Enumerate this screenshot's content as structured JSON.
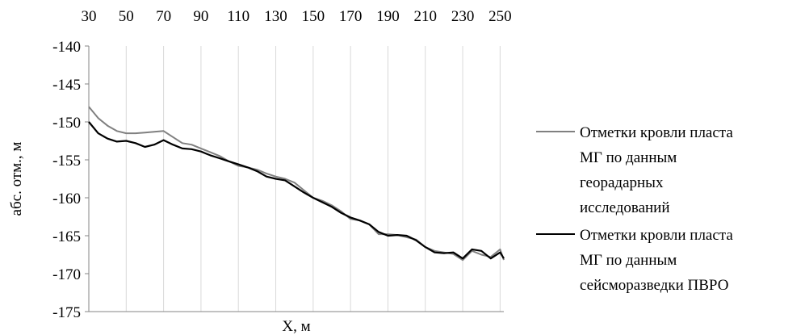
{
  "chart_data": {
    "type": "line",
    "title": "",
    "xlabel": "X, м",
    "ylabel": "абс. отм., м",
    "xlim": [
      30,
      252
    ],
    "ylim": [
      -175,
      -140
    ],
    "x_ticks": [
      30,
      50,
      70,
      90,
      110,
      130,
      150,
      170,
      190,
      210,
      230,
      250
    ],
    "x_tick_labels": [
      "30",
      "50",
      "70",
      "90",
      "110",
      "130",
      "150",
      "170",
      "190",
      "210",
      "230",
      "250"
    ],
    "y_ticks": [
      -140,
      -145,
      -150,
      -155,
      -160,
      -165,
      -170,
      -175
    ],
    "y_tick_labels": [
      "-140",
      "-145",
      "-150",
      "-155",
      "-160",
      "-165",
      "-170",
      "-175"
    ],
    "x_axis_position": "top",
    "grid": "vertical",
    "legend_position": "right",
    "series": [
      {
        "name": "Отметки кровли пласта МГ по данным георадарных исследований",
        "color": "#808080",
        "x": [
          30,
          35,
          40,
          45,
          50,
          55,
          60,
          65,
          70,
          75,
          80,
          85,
          90,
          95,
          100,
          105,
          110,
          115,
          120,
          125,
          130,
          135,
          140,
          145,
          150,
          155,
          160,
          165,
          170,
          175,
          180,
          185,
          190,
          195,
          200,
          205,
          210,
          215,
          220,
          225,
          230,
          235,
          240,
          245,
          250,
          252
        ],
        "values": [
          -148.0,
          -149.5,
          -150.5,
          -151.2,
          -151.5,
          -151.5,
          -151.4,
          -151.3,
          -151.2,
          -152.0,
          -152.8,
          -153.0,
          -153.5,
          -154.0,
          -154.5,
          -155.2,
          -155.8,
          -156.0,
          -156.3,
          -156.8,
          -157.2,
          -157.5,
          -158.0,
          -159.0,
          -160.0,
          -160.4,
          -161.0,
          -161.8,
          -162.8,
          -163.0,
          -163.5,
          -164.8,
          -164.8,
          -164.9,
          -165.2,
          -165.5,
          -166.5,
          -167.0,
          -167.2,
          -167.4,
          -168.2,
          -167.0,
          -167.5,
          -167.8,
          -166.8,
          -168.2
        ]
      },
      {
        "name": "Отметки кровли пласта МГ по данным сейсморазведки ПВРО",
        "color": "#000000",
        "x": [
          30,
          35,
          40,
          45,
          50,
          55,
          60,
          65,
          70,
          75,
          80,
          85,
          90,
          95,
          100,
          105,
          110,
          115,
          120,
          125,
          130,
          135,
          140,
          145,
          150,
          155,
          160,
          165,
          170,
          175,
          180,
          185,
          190,
          195,
          200,
          205,
          210,
          215,
          220,
          225,
          230,
          235,
          240,
          245,
          250,
          252
        ],
        "values": [
          -150.0,
          -151.5,
          -152.2,
          -152.6,
          -152.5,
          -152.8,
          -153.3,
          -153.0,
          -152.4,
          -153.0,
          -153.5,
          -153.6,
          -153.9,
          -154.4,
          -154.8,
          -155.2,
          -155.6,
          -156.0,
          -156.5,
          -157.2,
          -157.5,
          -157.7,
          -158.5,
          -159.3,
          -160.0,
          -160.6,
          -161.2,
          -162.0,
          -162.6,
          -163.0,
          -163.5,
          -164.5,
          -165.0,
          -164.9,
          -165.0,
          -165.6,
          -166.5,
          -167.2,
          -167.3,
          -167.2,
          -168.0,
          -166.8,
          -167.0,
          -168.0,
          -167.2,
          -168.0
        ]
      }
    ]
  }
}
